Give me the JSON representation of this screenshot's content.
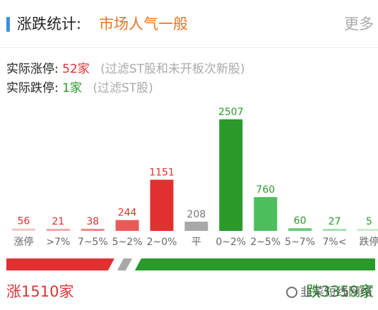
{
  "header": {
    "title": "涨跌统计:",
    "mood": "市场人气一般",
    "more_label": "更多"
  },
  "stats": {
    "limit_up_label": "实际涨停:",
    "limit_up_value": "52家",
    "limit_up_note": "(过滤ST股和未开板次新股)",
    "limit_down_label": "实际跌停:",
    "limit_down_value": "1家",
    "limit_down_note": "(过滤ST股)"
  },
  "colors": {
    "up_strong": "#e03030",
    "up_mid": "#e85a5a",
    "up_light": "#f2a0a0",
    "flat": "#a8a8a8",
    "down_strong": "#2a9a2a",
    "down_mid": "#4cbf5c",
    "down_light": "#8fd89a",
    "header_accent": "#3a8ee6",
    "mood": "#e8741e"
  },
  "chart_data": {
    "type": "bar",
    "categories": [
      "涨停",
      ">7%",
      "7~5%",
      "5~2%",
      "2~0%",
      "平",
      "0~2%",
      "2~5%",
      "5~7%",
      "7%<",
      "跌停"
    ],
    "values": [
      56,
      21,
      38,
      244,
      1151,
      208,
      2507,
      760,
      60,
      27,
      5
    ],
    "value_labels": [
      "56",
      "21",
      "38",
      "244",
      "1151",
      "208",
      "2507",
      "760",
      "60",
      "27",
      "5"
    ],
    "bar_colors": [
      "#f6c9c9",
      "#f2a8a8",
      "#ec8a8a",
      "#e85a5a",
      "#e03030",
      "#a8a8a8",
      "#2a9a2a",
      "#4cbf5c",
      "#6ccb78",
      "#a8dfb0",
      "#c8ecce"
    ],
    "label_colors": [
      "#e03030",
      "#e03030",
      "#e03030",
      "#e03030",
      "#e03030",
      "#777777",
      "#2a9a2a",
      "#2a9a2a",
      "#2a9a2a",
      "#2a9a2a",
      "#2a9a2a"
    ],
    "category_colors": [
      "#e03030",
      "#666666",
      "#666666",
      "#666666",
      "#666666",
      "#666666",
      "#666666",
      "#666666",
      "#666666",
      "#666666",
      "#2a9a2a"
    ],
    "title": "",
    "xlabel": "",
    "ylabel": "",
    "ylim": [
      0,
      2507
    ]
  },
  "distribution": {
    "up_count": 1510,
    "flat_count": 208,
    "down_count": 3359
  },
  "footer": {
    "up_label": "涨1510家",
    "down_label": "跌3359家"
  },
  "watermark": {
    "icon": "wechat-icon",
    "text": "韭菜短线网络"
  }
}
